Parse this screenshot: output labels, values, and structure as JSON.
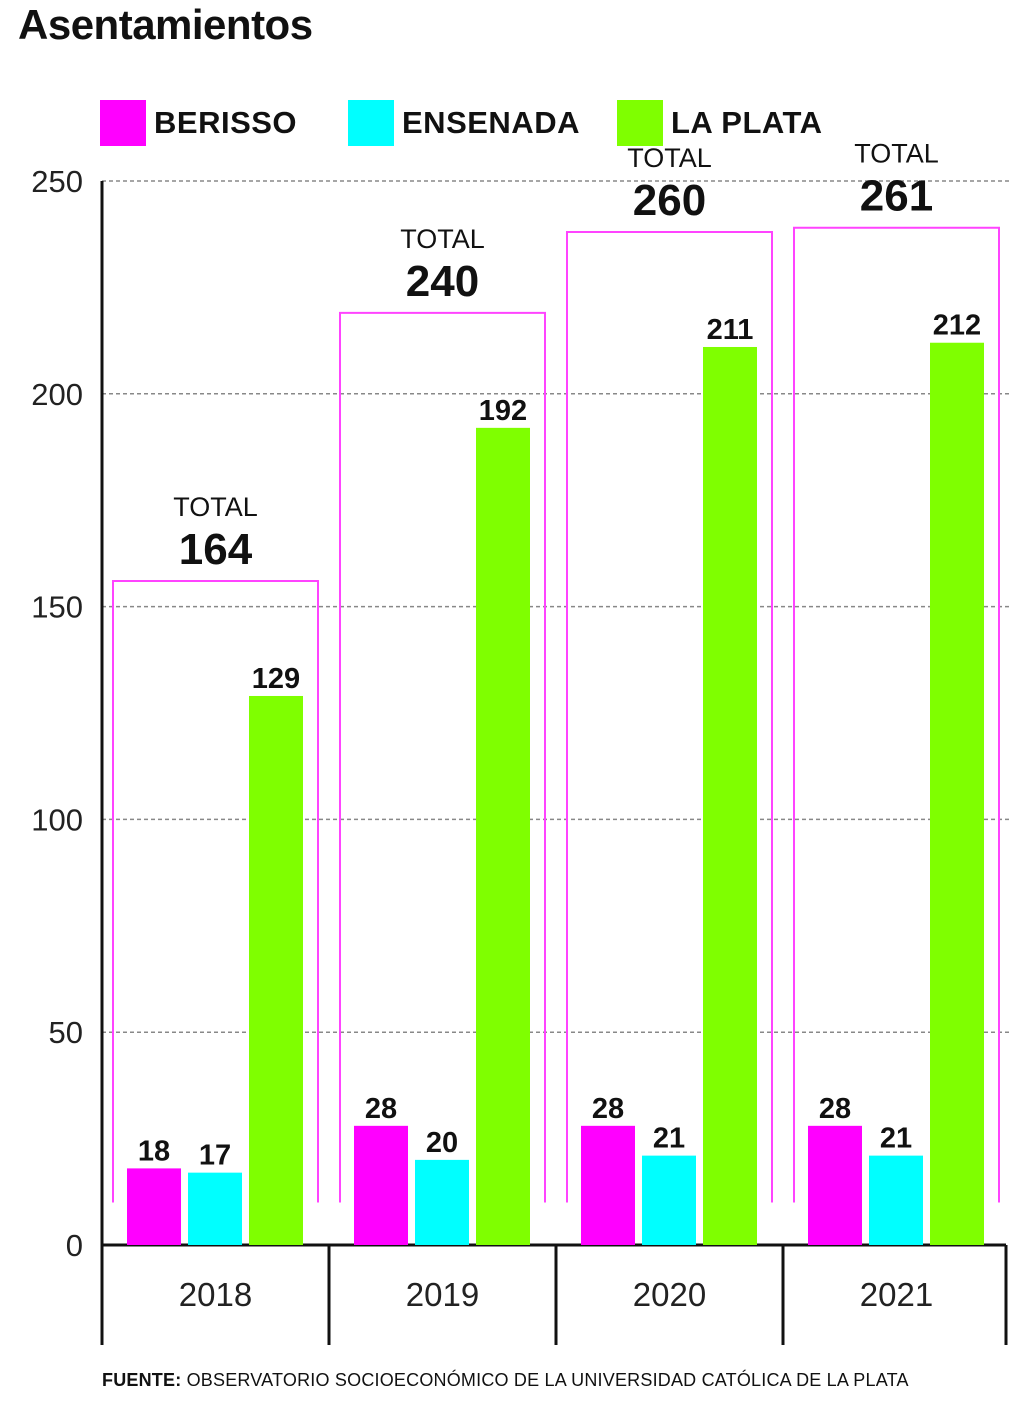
{
  "chart_data": {
    "type": "bar",
    "title": "Asentamientos",
    "categories": [
      "2018",
      "2019",
      "2020",
      "2021"
    ],
    "series": [
      {
        "name": "BERISSO",
        "color": "#ff00ff",
        "values": [
          18,
          28,
          28,
          28
        ]
      },
      {
        "name": "ENSENADA",
        "color": "#00ffff",
        "values": [
          17,
          20,
          21,
          21
        ]
      },
      {
        "name": "LA PLATA",
        "color": "#7fff00",
        "values": [
          129,
          192,
          211,
          212
        ]
      }
    ],
    "totals": {
      "label": "TOTAL",
      "values": [
        164,
        240,
        260,
        261
      ],
      "bracket_color": "#ff44ff"
    },
    "yticks": [
      0,
      50,
      100,
      150,
      200,
      250
    ],
    "ylim": [
      0,
      250
    ],
    "grid": true,
    "legend_position": "top",
    "xlabel": "",
    "ylabel": ""
  },
  "source": {
    "label": "FUENTE:",
    "text": " OBSERVATORIO SOCIOECONÓMICO DE LA UNIVERSIDAD CATÓLICA DE LA PLATA"
  }
}
